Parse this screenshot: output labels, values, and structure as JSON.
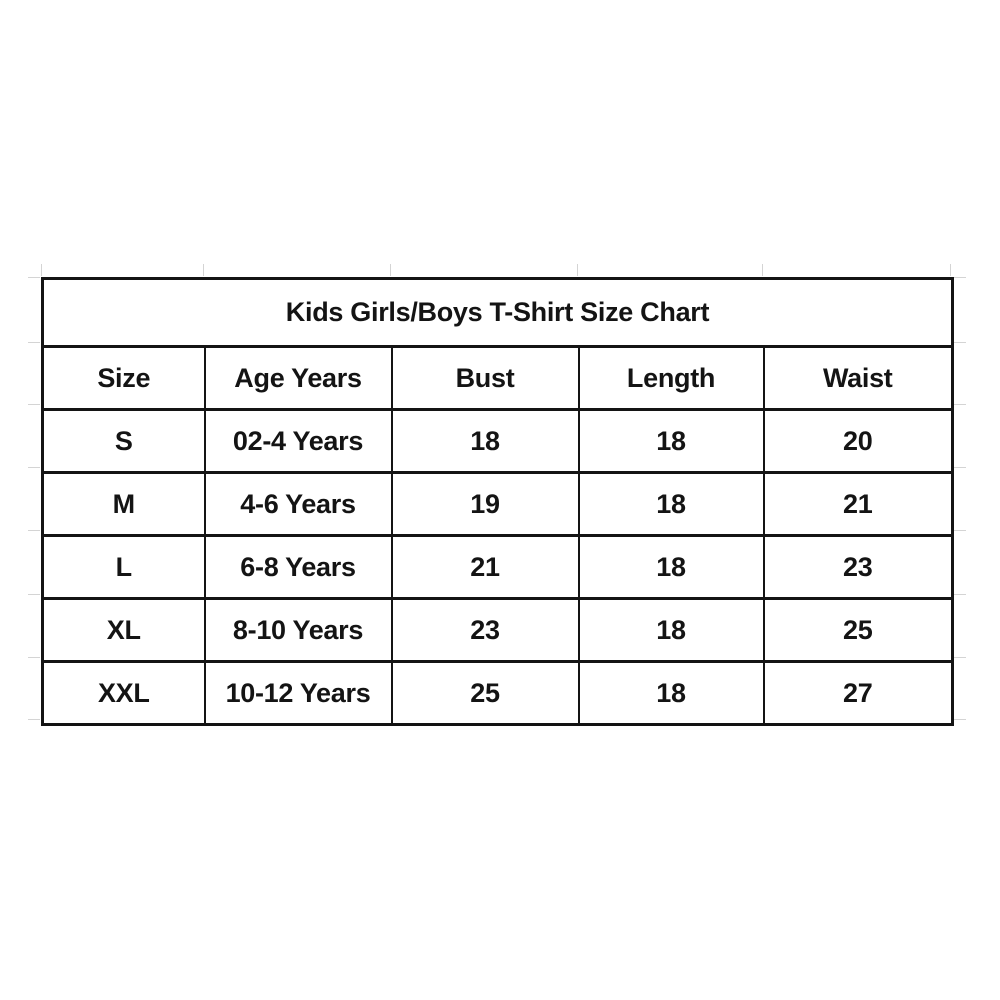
{
  "page": {
    "background": "#ffffff"
  },
  "chart_data": {
    "type": "table",
    "title": "Kids Girls/Boys T-Shirt Size Chart",
    "columns": [
      "Size",
      "Age Years",
      "Bust",
      "Length",
      "Waist"
    ],
    "rows": [
      [
        "S",
        "02-4 Years",
        "18",
        "18",
        "20"
      ],
      [
        "M",
        "4-6 Years",
        "19",
        "18",
        "21"
      ],
      [
        "L",
        "6-8 Years",
        "21",
        "18",
        "23"
      ],
      [
        "XL",
        "8-10 Years",
        "23",
        "18",
        "25"
      ],
      [
        "XXL",
        "10-12 Years",
        "25",
        "18",
        "27"
      ]
    ],
    "highlighted_column": "Age Years",
    "units": "inches (implied, not shown)",
    "colors": {
      "page_bg": "#ffffff",
      "title_bg": "#2E8699",
      "title_text": "#ffffff",
      "highlight_bg": "#FBB90D",
      "border": "#141414",
      "text": "#141414",
      "gridline": "#d4d4d4"
    }
  }
}
